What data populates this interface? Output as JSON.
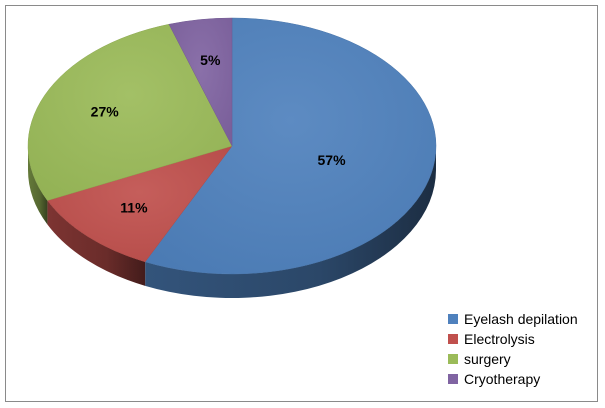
{
  "chart_data": {
    "type": "pie",
    "title": "",
    "categories": [
      "Eyelash depilation",
      "Electrolysis",
      "surgery",
      "Cryotherapy"
    ],
    "values": [
      57,
      11,
      27,
      5
    ],
    "labels": [
      "57%",
      "11%",
      "27%",
      "5%"
    ],
    "colors": [
      "#4f81bd",
      "#c0504d",
      "#9bbb59",
      "#8064a2"
    ],
    "legend_position": "bottom-right",
    "style": "3d"
  }
}
